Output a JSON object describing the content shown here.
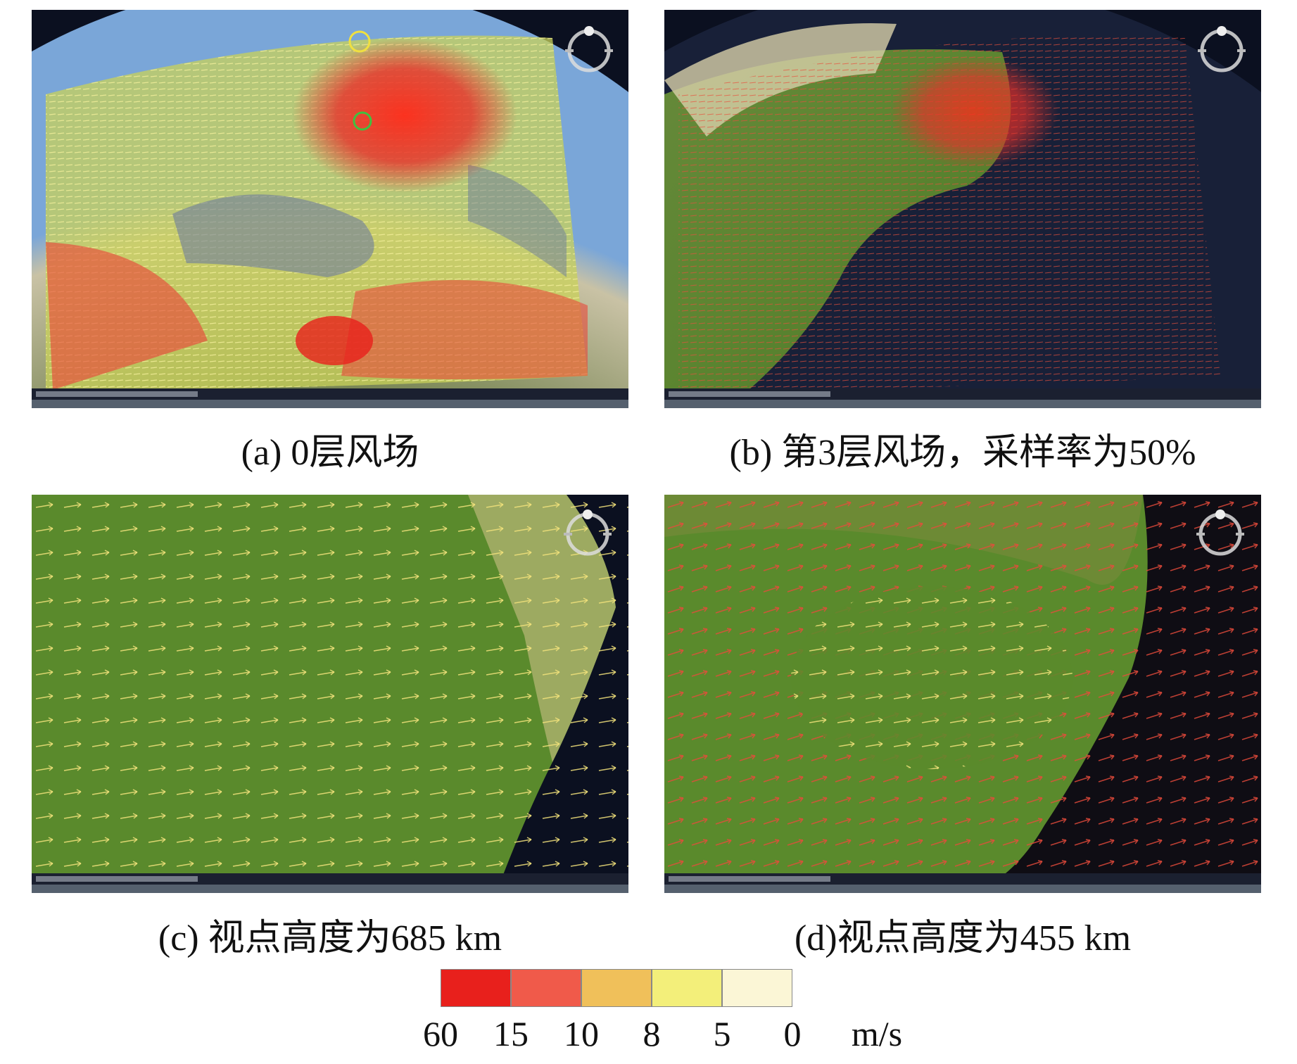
{
  "panels": [
    {
      "caption": "(a) 0层风场"
    },
    {
      "caption": "(b) 第3层风场，采样率为50%"
    },
    {
      "caption": "(c) 视点高度为685 km"
    },
    {
      "caption": "(d)视点高度为455 km"
    }
  ],
  "legend": {
    "colors": [
      "#e8201c",
      "#f05a4a",
      "#f0c05a",
      "#f3ef7a",
      "#fbf6d6"
    ],
    "labels": [
      60,
      15,
      10,
      8,
      5,
      0
    ],
    "unit": "m/s"
  }
}
